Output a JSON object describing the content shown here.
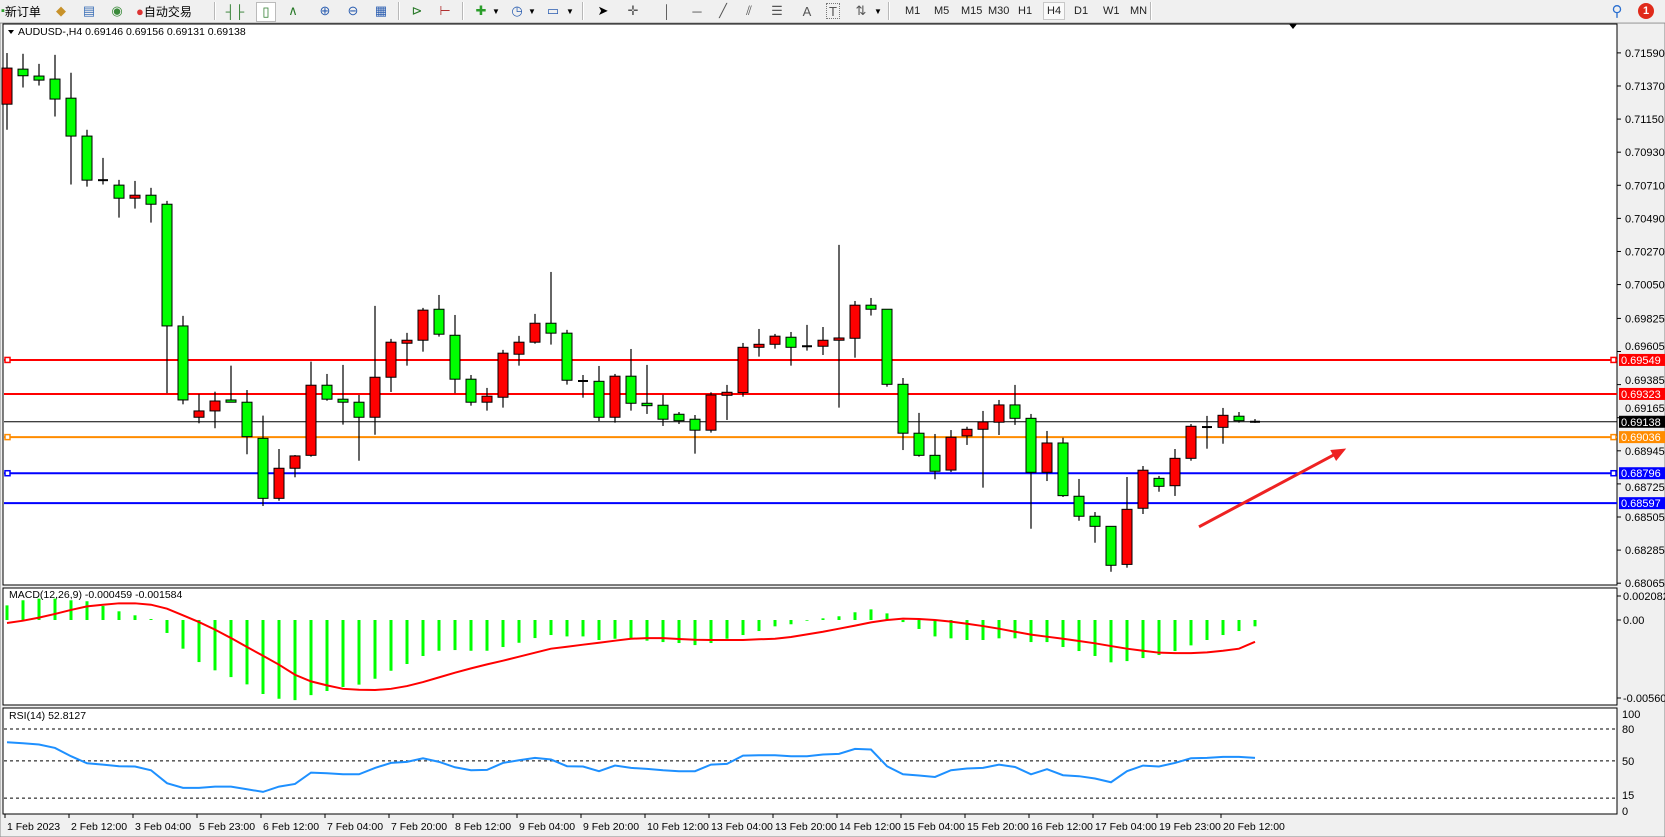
{
  "toolbar": {
    "new_order_label": "新订单",
    "auto_trading_label": "自动交易",
    "icons": [
      "new-order-icon",
      "metaeditor-icon",
      "navigator-icon",
      "signals-icon",
      "auto-trading-icon",
      "bar-chart-icon",
      "candlestick-icon",
      "line-chart-icon",
      "zoom-in-icon",
      "zoom-out-icon",
      "tile-windows-icon",
      "auto-scroll-icon",
      "chart-shift-icon",
      "indicators-icon",
      "periods-icon",
      "templates-icon",
      "cursor-icon",
      "crosshair-icon",
      "vertical-line-icon",
      "horizontal-line-icon",
      "trendline-icon",
      "equidistant-channel-icon",
      "fibonacci-icon",
      "text-icon",
      "text-label-icon",
      "arrows-icon",
      "search-icon",
      "notification-icon"
    ],
    "timeframes": [
      "M1",
      "M5",
      "M15",
      "M30",
      "H1",
      "H4",
      "D1",
      "W1",
      "MN"
    ],
    "selected_timeframe": "H4",
    "notification_count": "1",
    "text_tool": "A",
    "label_tool": "T"
  },
  "chart": {
    "header": "AUDUSD-,H4  0.69146 0.69156 0.69131 0.69138",
    "colors": {
      "bull": "#ff0000",
      "bear": "#00ff00",
      "background": "#ffffff"
    }
  },
  "chart_data": [
    {
      "type": "candlestick",
      "title": "AUDUSD-,H4",
      "symbol": "AUDUSD-",
      "timeframe": "H4",
      "ylim": [
        0.68053,
        0.71782
      ],
      "grid": false,
      "y_ticks": [
        "0.71590",
        "0.71370",
        "0.71150",
        "0.70930",
        "0.70710",
        "0.70490",
        "0.70270",
        "0.70050",
        "0.69825",
        "0.69605",
        "0.69385",
        "0.69165",
        "0.68945",
        "0.68725",
        "0.68505",
        "0.68285",
        "0.68065"
      ],
      "x_tick_labels": [
        {
          "index": 0,
          "label": "1 Feb 2023"
        },
        {
          "index": 4,
          "label": "2 Feb 12:00"
        },
        {
          "index": 8,
          "label": "3 Feb 04:00"
        },
        {
          "index": 12,
          "label": "5 Feb 23:00"
        },
        {
          "index": 16,
          "label": "6 Feb 12:00"
        },
        {
          "index": 20,
          "label": "7 Feb 04:00"
        },
        {
          "index": 24,
          "label": "7 Feb 20:00"
        },
        {
          "index": 28,
          "label": "8 Feb 12:00"
        },
        {
          "index": 32,
          "label": "9 Feb 04:00"
        },
        {
          "index": 36,
          "label": "9 Feb 20:00"
        },
        {
          "index": 40,
          "label": "10 Feb 12:00"
        },
        {
          "index": 44,
          "label": "13 Feb 04:00"
        },
        {
          "index": 48,
          "label": "13 Feb 20:00"
        },
        {
          "index": 52,
          "label": "14 Feb 12:00"
        },
        {
          "index": 56,
          "label": "15 Feb 04:00"
        },
        {
          "index": 60,
          "label": "15 Feb 20:00"
        },
        {
          "index": 64,
          "label": "16 Feb 12:00"
        },
        {
          "index": 68,
          "label": "17 Feb 04:00"
        },
        {
          "index": 72,
          "label": "19 Feb 23:00"
        },
        {
          "index": 76,
          "label": "20 Feb 12:00"
        }
      ],
      "ohlc": [
        [
          0.71249,
          0.71589,
          0.71079,
          0.71489
        ],
        [
          0.71482,
          0.71584,
          0.7136,
          0.71438
        ],
        [
          0.71436,
          0.71517,
          0.71373,
          0.71409
        ],
        [
          0.71416,
          0.71577,
          0.71167,
          0.71283
        ],
        [
          0.71289,
          0.71458,
          0.70715,
          0.71037
        ],
        [
          0.71037,
          0.71079,
          0.70701,
          0.70744
        ],
        [
          0.70744,
          0.70892,
          0.70715,
          0.70744
        ],
        [
          0.70711,
          0.70746,
          0.70495,
          0.70624
        ],
        [
          0.70624,
          0.70739,
          0.70555,
          0.70644
        ],
        [
          0.70644,
          0.70693,
          0.70462,
          0.70584
        ],
        [
          0.70584,
          0.70606,
          0.69328,
          0.69775
        ],
        [
          0.69775,
          0.69842,
          0.69254,
          0.69283
        ],
        [
          0.69168,
          0.69321,
          0.69128,
          0.6921
        ],
        [
          0.6921,
          0.69338,
          0.69095,
          0.69276
        ],
        [
          0.69283,
          0.69511,
          0.69268,
          0.69268
        ],
        [
          0.69268,
          0.69349,
          0.68922,
          0.69039
        ],
        [
          0.69028,
          0.69179,
          0.68578,
          0.68629
        ],
        [
          0.68629,
          0.68957,
          0.68613,
          0.68829
        ],
        [
          0.68829,
          0.68917,
          0.68769,
          0.68911
        ],
        [
          0.68915,
          0.69538,
          0.68906,
          0.69381
        ],
        [
          0.69381,
          0.69456,
          0.69278,
          0.69288
        ],
        [
          0.69288,
          0.69516,
          0.69119,
          0.69268
        ],
        [
          0.69268,
          0.69316,
          0.68879,
          0.69168
        ],
        [
          0.69168,
          0.69908,
          0.69052,
          0.69434
        ],
        [
          0.69434,
          0.69689,
          0.69336,
          0.69667
        ],
        [
          0.6966,
          0.69729,
          0.69511,
          0.6968
        ],
        [
          0.6968,
          0.69895,
          0.69604,
          0.6988
        ],
        [
          0.69886,
          0.69981,
          0.69704,
          0.6972
        ],
        [
          0.69713,
          0.69848,
          0.69328,
          0.69421
        ],
        [
          0.69421,
          0.69449,
          0.69245,
          0.69268
        ],
        [
          0.69268,
          0.69363,
          0.69212,
          0.69308
        ],
        [
          0.69301,
          0.69616,
          0.69232,
          0.69594
        ],
        [
          0.69587,
          0.69709,
          0.69511,
          0.69667
        ],
        [
          0.69667,
          0.69855,
          0.69657,
          0.69793
        ],
        [
          0.69793,
          0.70134,
          0.69651,
          0.69727
        ],
        [
          0.69727,
          0.69749,
          0.69385,
          0.69414
        ],
        [
          0.69409,
          0.69449,
          0.69298,
          0.69409
        ],
        [
          0.69407,
          0.69509,
          0.69143,
          0.69168
        ],
        [
          0.69168,
          0.69456,
          0.69132,
          0.69441
        ],
        [
          0.69441,
          0.69622,
          0.69212,
          0.69261
        ],
        [
          0.69261,
          0.69516,
          0.6919,
          0.69245
        ],
        [
          0.69248,
          0.69318,
          0.6911,
          0.69155
        ],
        [
          0.69188,
          0.69203,
          0.69123,
          0.69145
        ],
        [
          0.69155,
          0.69183,
          0.68926,
          0.69082
        ],
        [
          0.69082,
          0.69334,
          0.69066,
          0.69316
        ],
        [
          0.69314,
          0.69383,
          0.6915,
          0.69334
        ],
        [
          0.69332,
          0.69662,
          0.69305,
          0.69633
        ],
        [
          0.69633,
          0.69755,
          0.69571,
          0.69653
        ],
        [
          0.69653,
          0.69722,
          0.69624,
          0.69707
        ],
        [
          0.697,
          0.69735,
          0.69511,
          0.69633
        ],
        [
          0.6964,
          0.69782,
          0.69611,
          0.6964
        ],
        [
          0.6964,
          0.69768,
          0.69582,
          0.6968
        ],
        [
          0.6968,
          0.70314,
          0.69232,
          0.69695
        ],
        [
          0.69693,
          0.69941,
          0.69564,
          0.69913
        ],
        [
          0.69913,
          0.69961,
          0.69844,
          0.69886
        ],
        [
          0.69886,
          0.69886,
          0.69371,
          0.69387
        ],
        [
          0.69387,
          0.69429,
          0.6895,
          0.69062
        ],
        [
          0.69062,
          0.69197,
          0.68906,
          0.68915
        ],
        [
          0.68915,
          0.69057,
          0.68756,
          0.68809
        ],
        [
          0.68817,
          0.69083,
          0.68804,
          0.69035
        ],
        [
          0.69044,
          0.69105,
          0.68984,
          0.69088
        ],
        [
          0.69088,
          0.6921,
          0.687,
          0.69137
        ],
        [
          0.69135,
          0.69283,
          0.6905,
          0.6925
        ],
        [
          0.6925,
          0.69383,
          0.69117,
          0.69161
        ],
        [
          0.69161,
          0.6919,
          0.68427,
          0.68802
        ],
        [
          0.68802,
          0.69077,
          0.68744,
          0.68997
        ],
        [
          0.68997,
          0.69032,
          0.68638,
          0.68647
        ],
        [
          0.68643,
          0.68758,
          0.6848,
          0.6851
        ],
        [
          0.6851,
          0.68538,
          0.68334,
          0.68443
        ],
        [
          0.68443,
          0.68443,
          0.68141,
          0.68184
        ],
        [
          0.6819,
          0.68771,
          0.68168,
          0.68556
        ],
        [
          0.68563,
          0.68844,
          0.68525,
          0.68816
        ],
        [
          0.68762,
          0.68778,
          0.68673,
          0.68709
        ],
        [
          0.68713,
          0.68957,
          0.68645,
          0.68895
        ],
        [
          0.68895,
          0.69123,
          0.68879,
          0.69108
        ],
        [
          0.69103,
          0.69177,
          0.68959,
          0.69103
        ],
        [
          0.69101,
          0.6923,
          0.68992,
          0.69181
        ],
        [
          0.69175,
          0.69203,
          0.69132,
          0.69145
        ],
        [
          0.69146,
          0.69156,
          0.69131,
          0.69138
        ]
      ],
      "horizontal_lines": [
        {
          "price": 0.69549,
          "label": "0.69549",
          "color": "#ff0000",
          "markers": true
        },
        {
          "price": 0.69323,
          "label": "0.69323",
          "color": "#ff0000",
          "markers": false
        },
        {
          "price": 0.69138,
          "label": "0.69138",
          "color": "#000000",
          "markers": false,
          "bid": true
        },
        {
          "price": 0.69036,
          "label": "0.69036",
          "color": "#ff8c00",
          "markers": true
        },
        {
          "price": 0.68796,
          "label": "0.68796",
          "color": "#0000ff",
          "markers": true
        },
        {
          "price": 0.68597,
          "label": "0.68597",
          "color": "#0000ff",
          "markers": false
        }
      ],
      "annotations": [
        {
          "type": "arrow",
          "color": "#ee2222",
          "from": {
            "index": 74.5,
            "price": 0.6844
          },
          "to": {
            "index": 83.7,
            "price": 0.6896
          }
        }
      ]
    },
    {
      "type": "bar+line",
      "title": "MACD(12,26,9) -0.000459 -0.001584",
      "y_ticks": [
        "0.002082",
        "0.00",
        "-0.005606"
      ],
      "colors": {
        "histogram": "#00ff00",
        "signal": "#ff0000"
      },
      "histogram": [
        0.00106,
        0.00143,
        0.00155,
        0.00155,
        0.00143,
        0.00136,
        0.00102,
        0.00063,
        0.00034,
        7e-05,
        -0.00094,
        -0.00208,
        -0.00305,
        -0.00365,
        -0.00414,
        -0.00467,
        -0.00537,
        -0.00571,
        -0.00581,
        -0.00545,
        -0.00515,
        -0.00486,
        -0.00469,
        -0.00426,
        -0.00368,
        -0.00319,
        -0.00261,
        -0.00223,
        -0.00218,
        -0.00223,
        -0.00223,
        -0.00196,
        -0.00165,
        -0.00131,
        -0.00109,
        -0.00119,
        -0.00119,
        -0.00145,
        -0.00136,
        -0.00131,
        -0.0015,
        -0.0016,
        -0.00167,
        -0.00182,
        -0.00167,
        -0.00136,
        -0.00109,
        -0.0008,
        -0.00046,
        -0.00031,
        -5e-05,
        0.00012,
        0.00027,
        0.00056,
        0.00077,
        0.00048,
        -0.00015,
        -0.00065,
        -0.00119,
        -0.00133,
        -0.00145,
        -0.00145,
        -0.00133,
        -0.00133,
        -0.0016,
        -0.0016,
        -0.00196,
        -0.00225,
        -0.00261,
        -0.00307,
        -0.00298,
        -0.00276,
        -0.00254,
        -0.00225,
        -0.00184,
        -0.00145,
        -0.00109,
        -0.0008,
        -0.000459
      ],
      "signal": [
        -0.00022,
        -5e-05,
        0.00017,
        0.00044,
        0.00073,
        0.00099,
        0.00111,
        0.00121,
        0.00121,
        0.00111,
        0.00082,
        0.00034,
        -0.00015,
        -0.0007,
        -0.00131,
        -0.00196,
        -0.00259,
        -0.00324,
        -0.00397,
        -0.00445,
        -0.00474,
        -0.00499,
        -0.00506,
        -0.00508,
        -0.00499,
        -0.00479,
        -0.0045,
        -0.00416,
        -0.00382,
        -0.00351,
        -0.00322,
        -0.00295,
        -0.00266,
        -0.00237,
        -0.00208,
        -0.00194,
        -0.00179,
        -0.00165,
        -0.0015,
        -0.00136,
        -0.00131,
        -0.00131,
        -0.00138,
        -0.00143,
        -0.00145,
        -0.00145,
        -0.00145,
        -0.0014,
        -0.00136,
        -0.00123,
        -0.00104,
        -0.00085,
        -0.00063,
        -0.00041,
        -0.00017,
        0,
        0.0001,
        7e-05,
        0,
        -0.00012,
        -0.00027,
        -0.00044,
        -0.00063,
        -0.00085,
        -0.00106,
        -0.00121,
        -0.00136,
        -0.00152,
        -0.00169,
        -0.00189,
        -0.00208,
        -0.00223,
        -0.00237,
        -0.0024,
        -0.0024,
        -0.00235,
        -0.00223,
        -0.00208,
        -0.001584
      ]
    },
    {
      "type": "line",
      "title": "RSI(14) 52.8127",
      "ylim": [
        0,
        100
      ],
      "y_ticks": [
        "100",
        "80",
        "50",
        "15",
        "0"
      ],
      "levels": [
        80,
        50,
        15
      ],
      "color": "#1e90ff",
      "values": [
        67.6,
        66.6,
        65.4,
        62.2,
        54.4,
        47.8,
        46.5,
        45.0,
        44.7,
        41.2,
        29.0,
        24.6,
        24.6,
        25.8,
        25.8,
        23.3,
        20.8,
        25.8,
        28.3,
        39.0,
        38.4,
        37.4,
        37.4,
        43.4,
        48.1,
        49.1,
        52.5,
        49.1,
        44.0,
        41.2,
        41.5,
        48.1,
        50.6,
        52.8,
        51.3,
        45.0,
        44.7,
        40.3,
        45.6,
        43.4,
        42.5,
        41.2,
        40.3,
        40.3,
        46.5,
        47.2,
        55.0,
        55.3,
        55.3,
        54.4,
        54.4,
        56.0,
        56.6,
        61.3,
        60.7,
        45.0,
        37.4,
        36.2,
        34.9,
        41.2,
        42.8,
        43.4,
        46.5,
        44.3,
        37.4,
        42.2,
        36.5,
        35.6,
        33.4,
        29.9,
        40.3,
        45.6,
        44.7,
        48.1,
        52.5,
        52.8,
        53.8,
        53.8,
        52.8127
      ]
    }
  ]
}
